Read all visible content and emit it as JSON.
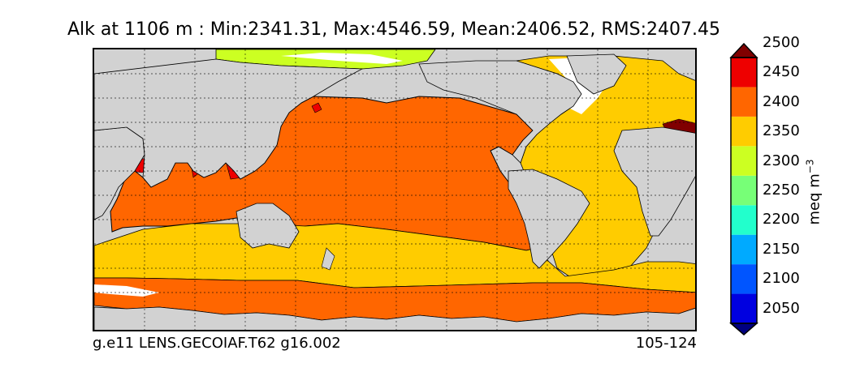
{
  "title": "Alk at 1106 m : Min:2341.31, Max:4546.59, Mean:2406.52, RMS:2407.45",
  "footer": {
    "case_name": "g.e11 LENS.GECOIAF.T62 g16.002",
    "years": "105-124"
  },
  "colorbar": {
    "units_base": "meq m",
    "units_exp": "−3",
    "tick_labels": [
      "2500",
      "2450",
      "2400",
      "2350",
      "2300",
      "2250",
      "2200",
      "2150",
      "2100",
      "2050"
    ],
    "levels": [
      2000,
      2050,
      2100,
      2150,
      2200,
      2250,
      2300,
      2350,
      2400,
      2450,
      2500
    ],
    "colors": [
      "#000080",
      "#0000e0",
      "#0055ff",
      "#00aaff",
      "#22ffcc",
      "#77ff77",
      "#ccff22",
      "#ffcc00",
      "#ff6600",
      "#ee0000",
      "#800000"
    ],
    "extend": "both"
  },
  "map": {
    "land_color": "#d2d2d2",
    "missing_color": "#ffffff",
    "grid": true,
    "projection": "global cylindrical, 20E centered"
  }
}
